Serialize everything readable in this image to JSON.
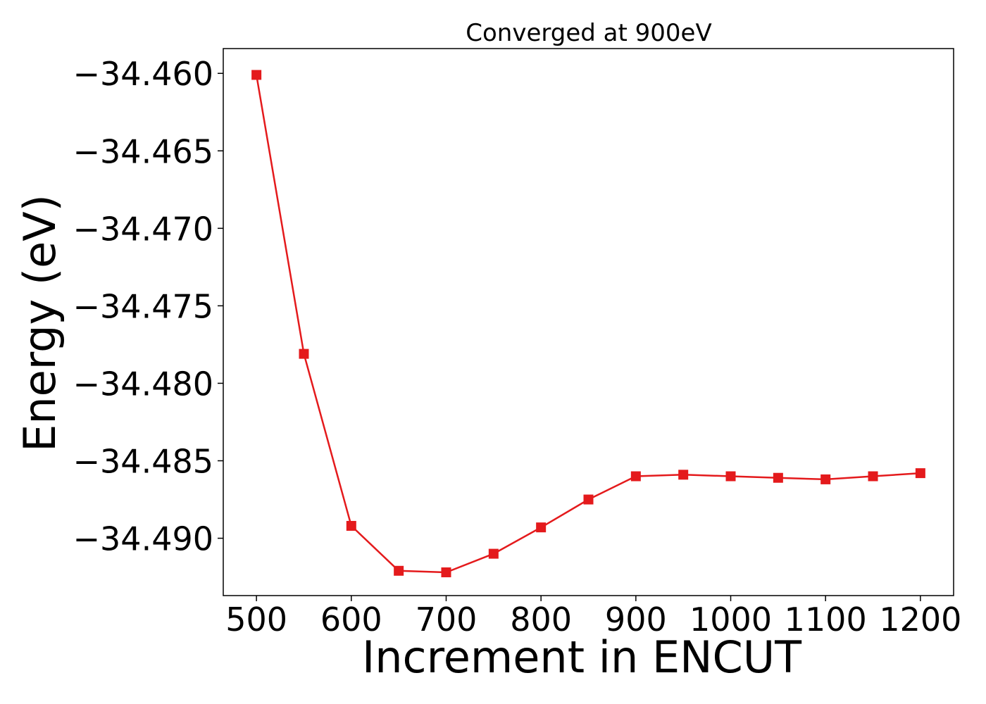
{
  "chart_data": {
    "type": "line",
    "title": "Converged at 900eV",
    "xlabel": "Increment in ENCUT",
    "ylabel": "Energy (eV)",
    "x": [
      500,
      550,
      600,
      650,
      700,
      750,
      800,
      850,
      900,
      950,
      1000,
      1050,
      1100,
      1150,
      1200
    ],
    "series": [
      {
        "values": [
          -34.4601,
          -34.4781,
          -34.4892,
          -34.4921,
          -34.4922,
          -34.491,
          -34.4893,
          -34.4875,
          -34.486,
          -34.4859,
          -34.486,
          -34.4861,
          -34.4862,
          -34.486,
          -34.4858
        ],
        "color": "#e41a1c",
        "marker": "square"
      }
    ],
    "xlim": [
      465,
      1235
    ],
    "ylim": [
      -34.4937,
      -34.4584
    ],
    "xticks": [
      500,
      600,
      700,
      800,
      900,
      1000,
      1100,
      1200
    ],
    "xtick_labels": [
      "500",
      "600",
      "700",
      "800",
      "900",
      "1000",
      "1100",
      "1200"
    ],
    "yticks": [
      -34.46,
      -34.465,
      -34.47,
      -34.475,
      -34.48,
      -34.485,
      -34.49
    ],
    "ytick_labels": [
      "−34.460",
      "−34.465",
      "−34.470",
      "−34.475",
      "−34.480",
      "−34.485",
      "−34.490"
    ],
    "grid": false,
    "legend": "none"
  }
}
